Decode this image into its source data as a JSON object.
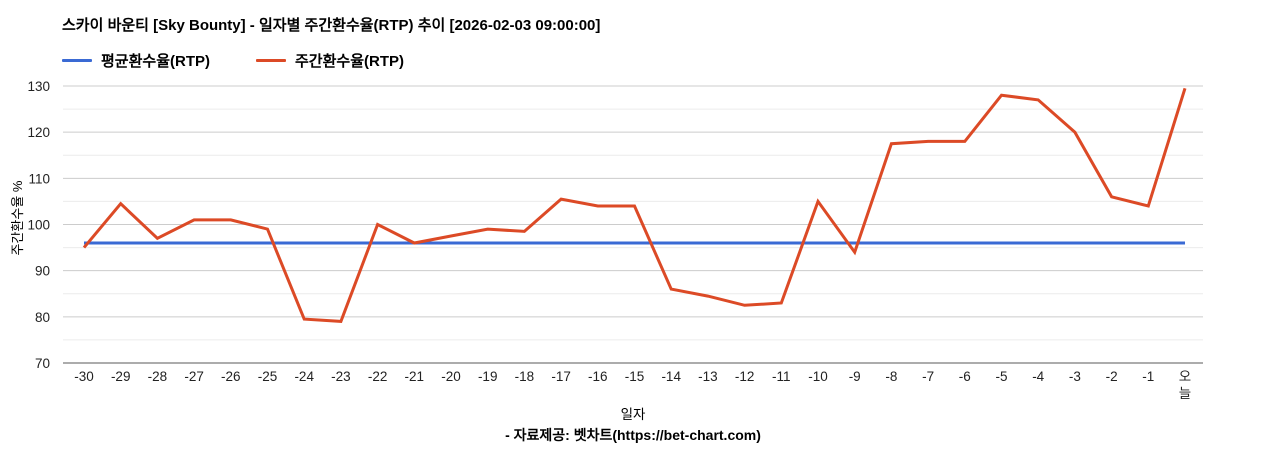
{
  "title": "스카이 바운티 [Sky Bounty] - 일자별 주간환수율(RTP) 추이 [2026-02-03 09:00:00]",
  "legend": [
    {
      "label": "평균환수율(RTP)",
      "color": "#3a6ad4"
    },
    {
      "label": "주간환수율(RTP)",
      "color": "#dc4a26"
    }
  ],
  "footer": "- 자료제공: 벳차트(https://bet-chart.com)",
  "chart_data": {
    "type": "line",
    "title": "스카이 바운티 [Sky Bounty] - 일자별 주간환수율(RTP) 추이 [2026-02-03 09:00:00]",
    "xlabel": "일자",
    "ylabel": "주간환수율 %",
    "ylim": [
      70,
      130
    ],
    "y_ticks": [
      70,
      80,
      90,
      100,
      110,
      120,
      130
    ],
    "grid": "major every 10, minor every 5, horizontal only",
    "legend_position": "top-left",
    "categories": [
      "-30",
      "-29",
      "-28",
      "-27",
      "-26",
      "-25",
      "-24",
      "-23",
      "-22",
      "-21",
      "-20",
      "-19",
      "-18",
      "-17",
      "-16",
      "-15",
      "-14",
      "-13",
      "-12",
      "-11",
      "-10",
      "-9",
      "-8",
      "-7",
      "-6",
      "-5",
      "-4",
      "-3",
      "-2",
      "-1",
      "오늘"
    ],
    "series": [
      {
        "name": "평균환수율(RTP)",
        "color": "#3a6ad4",
        "style": "constant-horizontal-line",
        "value": 96
      },
      {
        "name": "주간환수율(RTP)",
        "color": "#dc4a26",
        "values": [
          95,
          104.5,
          97,
          101,
          101,
          99,
          79.5,
          79,
          100,
          96,
          97.5,
          99,
          98.5,
          105.5,
          104,
          104,
          86,
          84.5,
          82.5,
          83,
          105,
          94,
          117.5,
          118,
          118,
          128,
          127,
          120,
          106,
          104,
          129.5
        ]
      }
    ],
    "colors": {
      "axis_line": "#595959",
      "major_gridline": "#cccccc",
      "minor_gridline": "#ececec",
      "tick_text": "#222222"
    }
  }
}
